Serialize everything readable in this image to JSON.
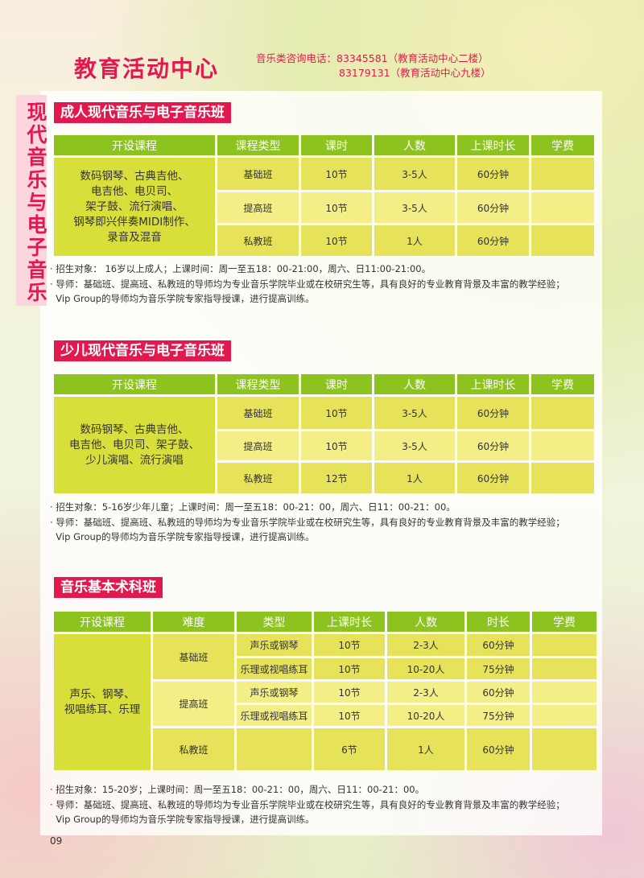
{
  "header": {
    "brand": "教育活动中心",
    "contact_line1": "音乐类咨询电话：83345581（教育活动中心二楼）",
    "contact_line2": "83179131（教育活动中心九楼）"
  },
  "side_label": "现代音乐与电子音乐",
  "colors": {
    "accent": "#e2194f",
    "header_green": "#8cc31e",
    "cell_yellow": "#e6e35a"
  },
  "sections": [
    {
      "title": "成人现代音乐与电子音乐班",
      "headers": [
        "开设课程",
        "课程类型",
        "课时",
        "人数",
        "上课时长",
        "学费"
      ],
      "courses": "数码钢琴、古典吉他、\n电吉他、电贝司、\n架子鼓、流行演唱、\n钢琴即兴伴奏MIDI制作、\n录音及混音",
      "rows": [
        [
          "基础班",
          "10节",
          "3-5人",
          "60分钟",
          ""
        ],
        [
          "提高班",
          "10节",
          "3-5人",
          "60分钟",
          ""
        ],
        [
          "私教班",
          "10节",
          "1人",
          "60分钟",
          ""
        ]
      ],
      "notes": [
        "· 招生对象： 16岁以上成人；上课时间：周一至五18：00-21:00，周六、日11:00-21:00。",
        "· 导师：基础班、提高班、私教班的导师均为专业音乐学院毕业或在校研究生等，具有良好的专业教育背景及丰富的教学经验；",
        "  Vip Group的导师均为音乐学院专家指导授课，进行提高训练。"
      ]
    },
    {
      "title": "少儿现代音乐与电子音乐班",
      "headers": [
        "开设课程",
        "课程类型",
        "课时",
        "人数",
        "上课时长",
        "学费"
      ],
      "courses": "数码钢琴、古典吉他、\n电吉他、电贝司、架子鼓、\n少儿演唱、流行演唱",
      "rows": [
        [
          "基础班",
          "10节",
          "3-5人",
          "60分钟",
          ""
        ],
        [
          "提高班",
          "10节",
          "3-5人",
          "60分钟",
          ""
        ],
        [
          "私教班",
          "12节",
          "1人",
          "60分钟",
          ""
        ]
      ],
      "notes": [
        "· 招生对象：5-16岁少年儿童；上课时间：周一至五18：00-21：00，周六、日11：00-21：00。",
        "· 导师：基础班、提高班、私教班的导师均为专业音乐学院毕业或在校研究生等，具有良好的专业教育背景及丰富的教学经验；",
        "  Vip Group的导师均为音乐学院专家指导授课，进行提高训练。"
      ]
    },
    {
      "title": "音乐基本术科班",
      "headers": [
        "开设课程",
        "难度",
        "类型",
        "上课时长",
        "人数",
        "时长",
        "学费"
      ],
      "courses": "声乐、钢琴、\n视唱练耳、乐理",
      "levels": [
        "基础班",
        "提高班",
        "私教班"
      ],
      "rows": [
        [
          "声乐或钢琴",
          "10节",
          "2-3人",
          "60分钟",
          ""
        ],
        [
          "乐理或视唱练耳",
          "10节",
          "10-20人",
          "75分钟",
          ""
        ],
        [
          "声乐或钢琴",
          "10节",
          "2-3人",
          "60分钟",
          ""
        ],
        [
          "乐理或视唱练耳",
          "10节",
          "10-20人",
          "75分钟",
          ""
        ],
        [
          "",
          "6节",
          "1人",
          "60分钟",
          ""
        ]
      ],
      "notes": [
        "· 招生对象：15-20岁；上课时间：周一至五18：00-21：00，周六、日11：00-21：00。",
        "· 导师：基础班、提高班、私教班的导师均为专业音乐学院毕业或在校研究生等，具有良好的专业教育背景及丰富的教学经验；",
        "  Vip Group的导师均为音乐学院专家指导授课，进行提高训练。"
      ]
    }
  ],
  "page_number": "09"
}
